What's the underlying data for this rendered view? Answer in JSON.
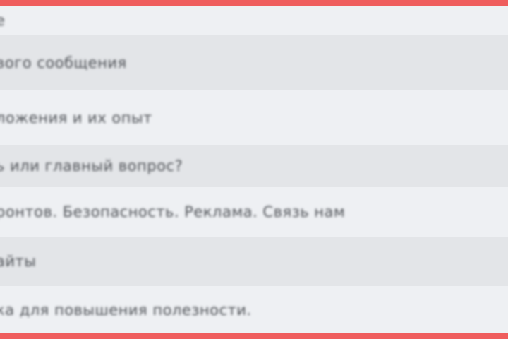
{
  "list": {
    "rows": [
      "е",
      "вого сообщения",
      "ложения и их опыт",
      "ь или главный вопрос?",
      "ронтов. Безопасность. Реклама. Связь нам",
      "айты",
      "ка для повышения полезности."
    ]
  }
}
